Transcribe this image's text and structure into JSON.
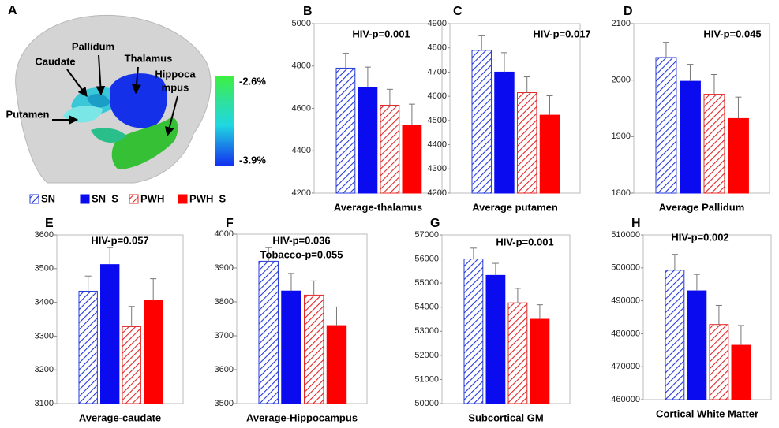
{
  "figure_a": {
    "label": "A",
    "regions": [
      "Pallidum",
      "Caudate",
      "Thalamus",
      "Putamen"
    ],
    "hippocampus_lines": [
      "Hippoca",
      "mpus"
    ],
    "scale_labels": [
      "-2.6%",
      "-3.9%"
    ]
  },
  "chart_data": [
    {
      "type": "bar",
      "panel_label": "B",
      "x_label": "Average-thalamus",
      "annotations": [
        "HIV-p=0.001"
      ],
      "ylim": [
        4200,
        5000
      ],
      "yticks": [
        4200,
        4400,
        4600,
        4800,
        5000
      ],
      "series": [
        {
          "name": "SN",
          "color": "#2338d8",
          "hatch": true,
          "values": [
            4790
          ],
          "errors": [
            70
          ]
        },
        {
          "name": "SN_S",
          "color": "#0b0bf0",
          "hatch": false,
          "values": [
            4700
          ],
          "errors": [
            95
          ]
        },
        {
          "name": "PWH",
          "color": "#e02828",
          "hatch": true,
          "values": [
            4615
          ],
          "errors": [
            75
          ]
        },
        {
          "name": "PWH_S",
          "color": "#ff0000",
          "hatch": false,
          "values": [
            4520
          ],
          "errors": [
            100
          ]
        }
      ]
    },
    {
      "type": "bar",
      "panel_label": "C",
      "x_label": "Average putamen",
      "annotations": [
        "HIV-p=0.017"
      ],
      "ylim": [
        4200,
        4900
      ],
      "yticks": [
        4200,
        4300,
        4400,
        4500,
        4600,
        4700,
        4800,
        4900
      ],
      "series": [
        {
          "name": "SN",
          "color": "#2338d8",
          "hatch": true,
          "values": [
            4790
          ],
          "errors": [
            60
          ]
        },
        {
          "name": "SN_S",
          "color": "#0b0bf0",
          "hatch": false,
          "values": [
            4700
          ],
          "errors": [
            80
          ]
        },
        {
          "name": "PWH",
          "color": "#e02828",
          "hatch": true,
          "values": [
            4615
          ],
          "errors": [
            65
          ]
        },
        {
          "name": "PWH_S",
          "color": "#ff0000",
          "hatch": false,
          "values": [
            4522
          ],
          "errors": [
            80
          ]
        }
      ]
    },
    {
      "type": "bar",
      "panel_label": "D",
      "x_label": "Average Pallidum",
      "annotations": [
        "HIV-p=0.045"
      ],
      "ylim": [
        1800,
        2100
      ],
      "yticks": [
        1800,
        1900,
        2000,
        2100
      ],
      "series": [
        {
          "name": "SN",
          "color": "#2338d8",
          "hatch": true,
          "values": [
            2040
          ],
          "errors": [
            27
          ]
        },
        {
          "name": "SN_S",
          "color": "#0b0bf0",
          "hatch": false,
          "values": [
            1998
          ],
          "errors": [
            30
          ]
        },
        {
          "name": "PWH",
          "color": "#e02828",
          "hatch": true,
          "values": [
            1975
          ],
          "errors": [
            35
          ]
        },
        {
          "name": "PWH_S",
          "color": "#ff0000",
          "hatch": false,
          "values": [
            1932
          ],
          "errors": [
            38
          ]
        }
      ]
    },
    {
      "type": "bar",
      "panel_label": "E",
      "x_label": "Average-caudate",
      "annotations": [
        "HIV-p=0.057"
      ],
      "ylim": [
        3100,
        3600
      ],
      "yticks": [
        3100,
        3200,
        3300,
        3400,
        3500,
        3600
      ],
      "series": [
        {
          "name": "SN",
          "color": "#2338d8",
          "hatch": true,
          "values": [
            3433
          ],
          "errors": [
            45
          ]
        },
        {
          "name": "SN_S",
          "color": "#0b0bf0",
          "hatch": false,
          "values": [
            3512
          ],
          "errors": [
            50
          ]
        },
        {
          "name": "PWH",
          "color": "#e02828",
          "hatch": true,
          "values": [
            3328
          ],
          "errors": [
            60
          ]
        },
        {
          "name": "PWH_S",
          "color": "#ff0000",
          "hatch": false,
          "values": [
            3405
          ],
          "errors": [
            65
          ]
        }
      ]
    },
    {
      "type": "bar",
      "panel_label": "F",
      "x_label": "Average-Hippocampus",
      "annotations": [
        "HIV-p=0.036",
        "Tobacco-p=0.055"
      ],
      "ylim": [
        3500,
        4000
      ],
      "yticks": [
        3500,
        3600,
        3700,
        3800,
        3900,
        4000
      ],
      "series": [
        {
          "name": "SN",
          "color": "#2338d8",
          "hatch": true,
          "values": [
            3920
          ],
          "errors": [
            40
          ]
        },
        {
          "name": "SN_S",
          "color": "#0b0bf0",
          "hatch": false,
          "values": [
            3832
          ],
          "errors": [
            52
          ]
        },
        {
          "name": "PWH",
          "color": "#e02828",
          "hatch": true,
          "values": [
            3820
          ],
          "errors": [
            42
          ]
        },
        {
          "name": "PWH_S",
          "color": "#ff0000",
          "hatch": false,
          "values": [
            3730
          ],
          "errors": [
            55
          ]
        }
      ]
    },
    {
      "type": "bar",
      "panel_label": "G",
      "x_label": "Subcortical GM",
      "annotations": [
        "HIV-p=0.001"
      ],
      "ylim": [
        50000,
        57000
      ],
      "yticks": [
        50000,
        51000,
        52000,
        53000,
        54000,
        55000,
        56000,
        57000
      ],
      "series": [
        {
          "name": "SN",
          "color": "#2338d8",
          "hatch": true,
          "values": [
            56000
          ],
          "errors": [
            450
          ]
        },
        {
          "name": "SN_S",
          "color": "#0b0bf0",
          "hatch": false,
          "values": [
            55320
          ],
          "errors": [
            500
          ]
        },
        {
          "name": "PWH",
          "color": "#e02828",
          "hatch": true,
          "values": [
            54180
          ],
          "errors": [
            600
          ]
        },
        {
          "name": "PWH_S",
          "color": "#ff0000",
          "hatch": false,
          "values": [
            53500
          ],
          "errors": [
            600
          ]
        }
      ]
    },
    {
      "type": "bar",
      "panel_label": "H",
      "x_label": "Cortical White Matter",
      "annotations": [
        "HIV-p=0.002"
      ],
      "ylim": [
        460000,
        510000
      ],
      "yticks": [
        460000,
        470000,
        480000,
        490000,
        500000,
        510000
      ],
      "series": [
        {
          "name": "SN",
          "color": "#2338d8",
          "hatch": true,
          "values": [
            499300
          ],
          "errors": [
            4800
          ]
        },
        {
          "name": "SN_S",
          "color": "#0b0bf0",
          "hatch": false,
          "values": [
            493000
          ],
          "errors": [
            5000
          ]
        },
        {
          "name": "PWH",
          "color": "#e02828",
          "hatch": true,
          "values": [
            482800
          ],
          "errors": [
            5800
          ]
        },
        {
          "name": "PWH_S",
          "color": "#ff0000",
          "hatch": false,
          "values": [
            476500
          ],
          "errors": [
            6000
          ]
        }
      ]
    }
  ]
}
